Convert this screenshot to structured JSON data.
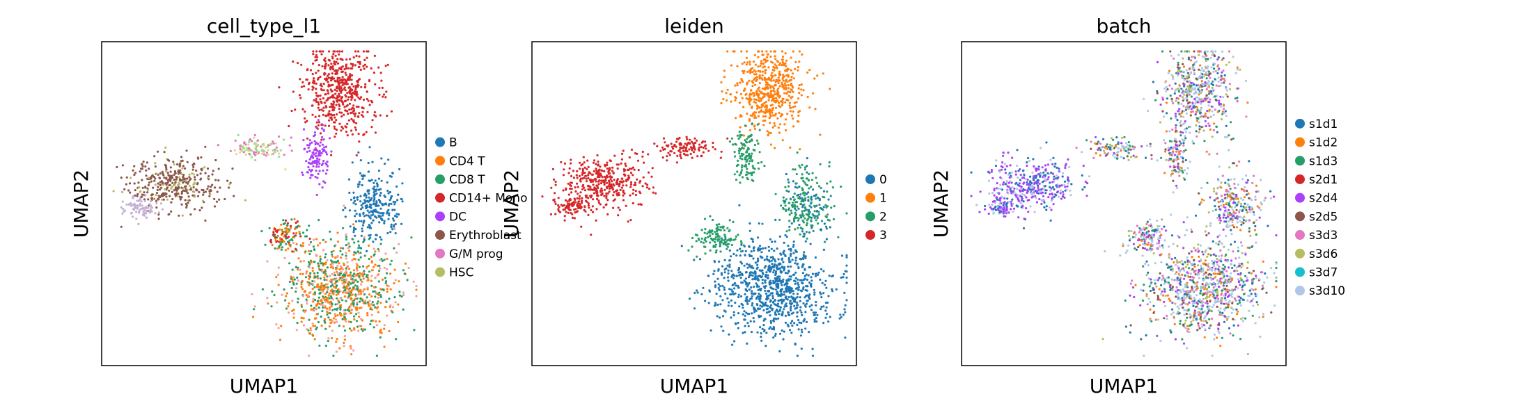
{
  "chart_data": [
    {
      "type": "scatter",
      "title": "cell_type_l1",
      "xlabel": "UMAP1",
      "ylabel": "UMAP2",
      "legend_position": "right",
      "legend": [
        {
          "label": "B",
          "color": "#1f77b4"
        },
        {
          "label": "CD4 T",
          "color": "#ff7f0e"
        },
        {
          "label": "CD8 T",
          "color": "#279e68"
        },
        {
          "label": "CD14+ Mono",
          "color": "#d62728"
        },
        {
          "label": "DC",
          "color": "#aa40fc"
        },
        {
          "label": "Erythroblast",
          "color": "#8c564b"
        },
        {
          "label": "G/M prog",
          "color": "#e377c2"
        },
        {
          "label": "HSC",
          "color": "#b5bd61"
        }
      ]
    },
    {
      "type": "scatter",
      "title": "leiden",
      "xlabel": "UMAP1",
      "ylabel": "UMAP2",
      "legend_position": "right",
      "legend": [
        {
          "label": "0",
          "color": "#1f77b4"
        },
        {
          "label": "1",
          "color": "#ff7f0e"
        },
        {
          "label": "2",
          "color": "#279e68"
        },
        {
          "label": "3",
          "color": "#d62728"
        }
      ]
    },
    {
      "type": "scatter",
      "title": "batch",
      "xlabel": "UMAP1",
      "ylabel": "UMAP2",
      "legend_position": "right",
      "legend": [
        {
          "label": "s1d1",
          "color": "#1f77b4"
        },
        {
          "label": "s1d2",
          "color": "#ff7f0e"
        },
        {
          "label": "s1d3",
          "color": "#279e68"
        },
        {
          "label": "s2d1",
          "color": "#d62728"
        },
        {
          "label": "s2d4",
          "color": "#aa40fc"
        },
        {
          "label": "s2d5",
          "color": "#8c564b"
        },
        {
          "label": "s3d3",
          "color": "#e377c2"
        },
        {
          "label": "s3d6",
          "color": "#b5bd61"
        },
        {
          "label": "s3d7",
          "color": "#17becf"
        },
        {
          "label": "s3d10",
          "color": "#aec7e8"
        }
      ]
    }
  ]
}
